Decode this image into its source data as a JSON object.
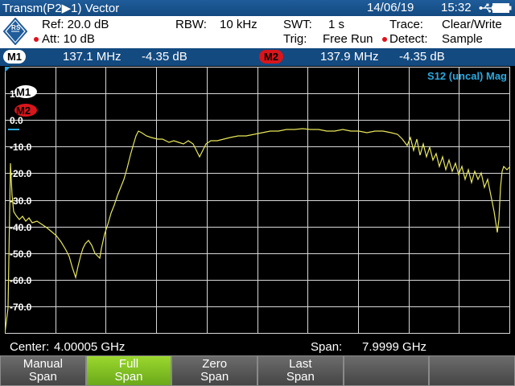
{
  "titlebar": {
    "mode": "Transm(P2▶1) Vector",
    "date": "14/06/19",
    "time": "15:32"
  },
  "settings": {
    "ref": "Ref:  20.0 dB",
    "att": "Att:  10 dB",
    "rbw_label": "RBW:",
    "rbw_value": "10 kHz",
    "swt_label": "SWT:",
    "swt_value": "1 s",
    "trace_label": "Trace:",
    "trace_value": "Clear/Write",
    "trig_label": "Trig:",
    "trig_value": "Free Run",
    "detect_label": "Detect:",
    "detect_value": "Sample"
  },
  "markers": {
    "m1_label": "M1",
    "m1_freq": "137.1 MHz",
    "m1_level": "-4.35 dB",
    "m2_label": "M2",
    "m2_freq": "137.9 MHz",
    "m2_level": "-4.35 dB"
  },
  "plot": {
    "trace_title": "S12 (uncal) Mag",
    "y_ticks": [
      "10.0",
      "0.0",
      "-10.0",
      "-20.0",
      "-30.0",
      "-40.0",
      "-50.0",
      "-60.0",
      "-70.0"
    ],
    "marker1_tag": "M1",
    "marker2_tag": "M2"
  },
  "status": {
    "center_label": "Center:",
    "center_value": "4.00005 GHz",
    "span_label": "Span:",
    "span_value": "7.9999 GHz"
  },
  "softkeys": [
    {
      "line1": "Manual",
      "line2": "Span",
      "active": false
    },
    {
      "line1": "Full",
      "line2": "Span",
      "active": true
    },
    {
      "line1": "Zero",
      "line2": "Span",
      "active": false
    },
    {
      "line1": "Last",
      "line2": "Span",
      "active": false
    },
    {
      "line1": "",
      "line2": "",
      "active": false
    },
    {
      "line1": "",
      "line2": "",
      "active": false
    }
  ],
  "colors": {
    "trace": "#e8e85a",
    "grid": "#ffffff",
    "title_bg": "#134a80",
    "trace_title": "#29a9e0",
    "active_key": "#7fc023",
    "marker1_badge": "#ffffff",
    "marker2_badge": "#d8161c"
  }
}
